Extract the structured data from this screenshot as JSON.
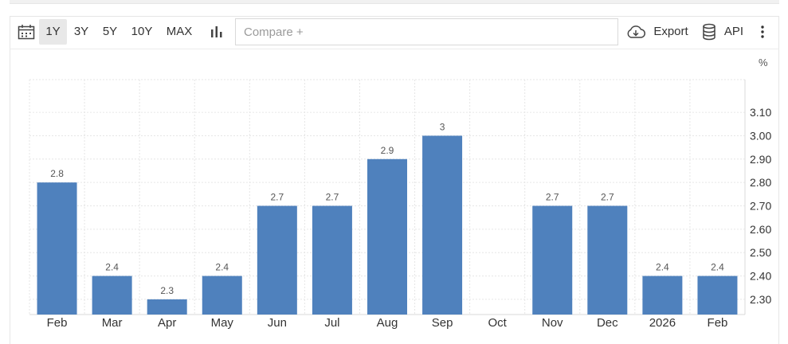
{
  "toolbar": {
    "ranges": [
      "1Y",
      "3Y",
      "5Y",
      "10Y",
      "MAX"
    ],
    "active_range": "1Y",
    "compare_placeholder": "Compare +",
    "export_label": "Export",
    "api_label": "API",
    "icons": {
      "calendar": "calendar-icon",
      "chart_type": "bar-chart-icon",
      "export": "cloud-download-icon",
      "api": "database-icon",
      "more": "more-vertical-icon"
    }
  },
  "chart_data": {
    "type": "bar",
    "unit": "%",
    "categories": [
      "Feb",
      "Mar",
      "Apr",
      "May",
      "Jun",
      "Jul",
      "Aug",
      "Sep",
      "Oct",
      "Nov",
      "Dec",
      "2026",
      "Feb"
    ],
    "values": [
      2.8,
      2.4,
      2.3,
      2.4,
      2.7,
      2.7,
      2.9,
      3,
      null,
      2.7,
      2.7,
      2.4,
      2.4
    ],
    "data_labels": [
      "2.8",
      "2.4",
      "2.3",
      "2.4",
      "2.7",
      "2.7",
      "2.9",
      "3",
      "",
      "2.7",
      "2.7",
      "2.4",
      "2.4"
    ],
    "y_ticks": [
      "3.10",
      "3.00",
      "2.90",
      "2.80",
      "2.70",
      "2.60",
      "2.50",
      "2.40",
      "2.30"
    ],
    "ylim": [
      2.235,
      3.24
    ],
    "y_axis_side": "right",
    "grid": true,
    "bar_color": "#4f81bd"
  }
}
